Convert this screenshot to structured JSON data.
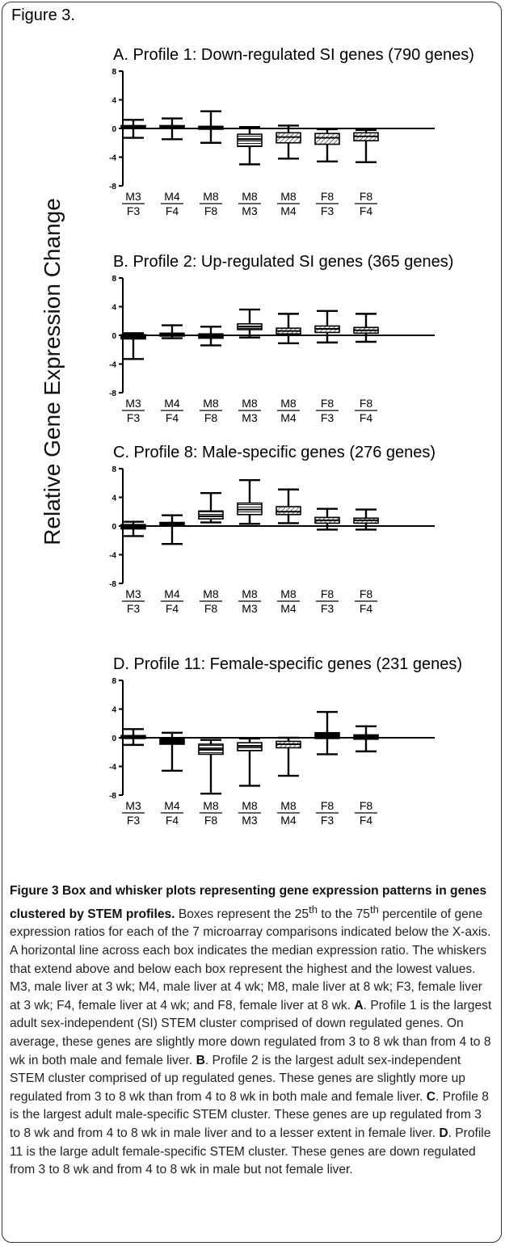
{
  "figure_label": "Figure 3.",
  "y_axis_label": "Relative Gene Expression Change",
  "colors": {
    "stroke": "#000000",
    "text": "#000000",
    "caption_text": "#222222",
    "frame": "#333333"
  },
  "panels": [
    {
      "title": "A. Profile 1: Down-regulated SI genes (790 genes)"
    },
    {
      "title": "B. Profile 2: Up-regulated SI genes (365 genes)"
    },
    {
      "title": "C. Profile 8: Male-specific genes (276 genes)"
    },
    {
      "title": "D. Profile 11: Female-specific genes (231 genes)"
    }
  ],
  "chart_data": [
    {
      "type": "box",
      "title": "A. Profile 1: Down-regulated SI genes (790 genes)",
      "ylabel": "Relative Gene Expression Change",
      "ylim": [
        -8,
        8
      ],
      "yticks": [
        "8",
        "4",
        "0",
        "-4",
        "-8"
      ],
      "categories": [
        [
          "M3",
          "F3"
        ],
        [
          "M4",
          "F4"
        ],
        [
          "M8",
          "F8"
        ],
        [
          "M8",
          "M3"
        ],
        [
          "M8",
          "M4"
        ],
        [
          "F8",
          "F3"
        ],
        [
          "F8",
          "F4"
        ]
      ],
      "boxes": [
        {
          "min": -1.3,
          "q1": 0.0,
          "median": 0.2,
          "q3": 0.4,
          "max": 1.2,
          "fill": "solid"
        },
        {
          "min": -1.5,
          "q1": 0.0,
          "median": 0.2,
          "q3": 0.4,
          "max": 1.4,
          "fill": "solid"
        },
        {
          "min": -2.0,
          "q1": -0.1,
          "median": 0.1,
          "q3": 0.3,
          "max": 2.4,
          "fill": "solid"
        },
        {
          "min": -5.0,
          "q1": -2.5,
          "median": -1.5,
          "q3": -0.8,
          "max": 0.2,
          "fill": "hlines"
        },
        {
          "min": -4.2,
          "q1": -2.0,
          "median": -1.2,
          "q3": -0.6,
          "max": 0.4,
          "fill": "hatch"
        },
        {
          "min": -4.6,
          "q1": -2.2,
          "median": -1.3,
          "q3": -0.7,
          "max": -0.1,
          "fill": "hatch"
        },
        {
          "min": -4.7,
          "q1": -1.7,
          "median": -1.1,
          "q3": -0.6,
          "max": -0.2,
          "fill": "hatch"
        }
      ]
    },
    {
      "type": "box",
      "title": "B. Profile 2: Up-regulated SI genes (365 genes)",
      "ylabel": "Relative Gene Expression Change",
      "ylim": [
        -8,
        8
      ],
      "yticks": [
        "8",
        "4",
        "0",
        "-4",
        "-8"
      ],
      "categories": [
        [
          "M3",
          "F3"
        ],
        [
          "M4",
          "F4"
        ],
        [
          "M8",
          "F8"
        ],
        [
          "M8",
          "M3"
        ],
        [
          "M8",
          "M4"
        ],
        [
          "F8",
          "F3"
        ],
        [
          "F8",
          "F4"
        ]
      ],
      "boxes": [
        {
          "min": -3.3,
          "q1": -0.5,
          "median": -0.2,
          "q3": 0.1,
          "max": 0.3,
          "fill": "solid"
        },
        {
          "min": -0.4,
          "q1": -0.1,
          "median": 0.1,
          "q3": 0.3,
          "max": 1.4,
          "fill": "solid"
        },
        {
          "min": -1.4,
          "q1": -0.4,
          "median": -0.1,
          "q3": 0.2,
          "max": 1.2,
          "fill": "solid"
        },
        {
          "min": -0.3,
          "q1": 0.8,
          "median": 1.2,
          "q3": 1.6,
          "max": 3.6,
          "fill": "hlines"
        },
        {
          "min": -1.1,
          "q1": 0.2,
          "median": 0.6,
          "q3": 1.0,
          "max": 3.0,
          "fill": "hatch"
        },
        {
          "min": -1.0,
          "q1": 0.4,
          "median": 0.9,
          "q3": 1.3,
          "max": 3.4,
          "fill": "hatch"
        },
        {
          "min": -0.9,
          "q1": 0.3,
          "median": 0.7,
          "q3": 1.1,
          "max": 3.0,
          "fill": "hatch"
        }
      ]
    },
    {
      "type": "box",
      "title": "C. Profile 8: Male-specific genes (276 genes)",
      "ylabel": "Relative Gene Expression Change",
      "ylim": [
        -8,
        8
      ],
      "yticks": [
        "8",
        "4",
        "0",
        "-4",
        "-8"
      ],
      "categories": [
        [
          "M3",
          "F3"
        ],
        [
          "M4",
          "F4"
        ],
        [
          "M8",
          "F8"
        ],
        [
          "M8",
          "M3"
        ],
        [
          "M8",
          "M4"
        ],
        [
          "F8",
          "F3"
        ],
        [
          "F8",
          "F4"
        ]
      ],
      "boxes": [
        {
          "min": -1.4,
          "q1": -0.4,
          "median": -0.1,
          "q3": 0.2,
          "max": 0.6,
          "fill": "solid"
        },
        {
          "min": -2.5,
          "q1": 0.0,
          "median": 0.3,
          "q3": 0.5,
          "max": 1.5,
          "fill": "solid"
        },
        {
          "min": 0.5,
          "q1": 1.0,
          "median": 1.4,
          "q3": 2.1,
          "max": 4.6,
          "fill": "hlines"
        },
        {
          "min": 0.3,
          "q1": 1.6,
          "median": 2.3,
          "q3": 3.2,
          "max": 6.4,
          "fill": "hlines"
        },
        {
          "min": 0.4,
          "q1": 1.6,
          "median": 2.0,
          "q3": 2.7,
          "max": 5.1,
          "fill": "hatch"
        },
        {
          "min": -0.5,
          "q1": 0.4,
          "median": 0.8,
          "q3": 1.2,
          "max": 2.4,
          "fill": "hatch"
        },
        {
          "min": -0.5,
          "q1": 0.4,
          "median": 0.8,
          "q3": 1.1,
          "max": 2.3,
          "fill": "hatch"
        }
      ]
    },
    {
      "type": "box",
      "title": "D. Profile 11: Female-specific genes (231 genes)",
      "ylabel": "Relative Gene Expression Change",
      "ylim": [
        -8,
        8
      ],
      "yticks": [
        "8",
        "4",
        "0",
        "-4",
        "-8"
      ],
      "categories": [
        [
          "M3",
          "F3"
        ],
        [
          "M4",
          "F4"
        ],
        [
          "M8",
          "F8"
        ],
        [
          "M8",
          "M3"
        ],
        [
          "M8",
          "M4"
        ],
        [
          "F8",
          "F3"
        ],
        [
          "F8",
          "F4"
        ]
      ],
      "boxes": [
        {
          "min": -1.0,
          "q1": -0.1,
          "median": 0.1,
          "q3": 0.3,
          "max": 1.2,
          "fill": "solid"
        },
        {
          "min": -4.6,
          "q1": -0.9,
          "median": -0.4,
          "q3": 0.0,
          "max": 0.7,
          "fill": "solid"
        },
        {
          "min": -7.8,
          "q1": -2.3,
          "median": -1.6,
          "q3": -0.9,
          "max": -0.3,
          "fill": "hlines"
        },
        {
          "min": -6.7,
          "q1": -1.8,
          "median": -1.2,
          "q3": -0.7,
          "max": -0.1,
          "fill": "hlines"
        },
        {
          "min": -5.3,
          "q1": -1.4,
          "median": -0.9,
          "q3": -0.5,
          "max": 0.0,
          "fill": "hatch"
        },
        {
          "min": -2.3,
          "q1": -0.1,
          "median": 0.3,
          "q3": 0.7,
          "max": 3.6,
          "fill": "solid"
        },
        {
          "min": -1.9,
          "q1": -0.2,
          "median": 0.1,
          "q3": 0.4,
          "max": 1.6,
          "fill": "solid"
        }
      ]
    }
  ],
  "caption": {
    "title": "Figure 3 Box and whisker plots representing gene expression patterns in genes clustered by STEM profiles",
    "s1a": "Boxes represent the 25",
    "s1_sup1": "th",
    "s1b": " to the 75",
    "s1_sup2": "th",
    "s1c": " percentile of gene expression ratios for each of the 7 microarray comparisons indicated below the X-axis. A horizontal line across each box indicates the median expression ratio. The whiskers that extend above and below each box represent the highest and the lowest values. M3, male liver at 3 wk; M4, male liver at 4 wk; M8, male liver at 8 wk; F3, female liver at 3 wk; F4, female liver at 4 wk; and F8, female liver at 8 wk. ",
    "a_label": "A",
    "a_text": ". Profile 1 is the largest adult sex-independent (SI) STEM cluster comprised of down regulated genes. On average, these genes are slightly more down regulated from 3 to 8 wk than from 4 to 8 wk in both male and female liver. ",
    "b_label": "B",
    "b_text": ". Profile 2 is the largest adult sex-independent STEM cluster comprised of up regulated genes. These genes are slightly more up regulated from 3 to 8 wk than from 4 to 8 wk in both male and female liver. ",
    "c_label": "C",
    "c_text": ". Profile 8 is the largest adult male-specific STEM cluster. These genes are up regulated from 3 to 8 wk and from 4 to 8 wk in male liver and to a lesser extent in female liver. ",
    "d_label": "D",
    "d_text": ". Profile 11 is the large adult female-specific STEM cluster. These genes are down regulated from 3 to 8 wk and from 4 to 8 wk in male but not female liver."
  }
}
